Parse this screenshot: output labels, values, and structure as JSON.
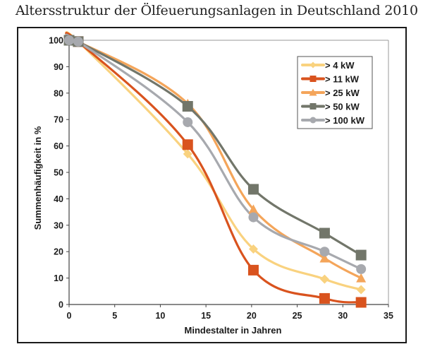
{
  "title": "Altersstruktur der Ölfeuerungsanlagen in Deutschland 2010",
  "chart_data": {
    "type": "line",
    "title": "Altersstruktur der Ölfeuerungsanlagen in Deutschland 2010",
    "xlabel": "Mindestalter in Jahren",
    "ylabel": "Summenhäufigkeit in %",
    "xlim": [
      0,
      35
    ],
    "ylim": [
      0,
      100
    ],
    "xticks": [
      0,
      5,
      10,
      15,
      20,
      25,
      30,
      35
    ],
    "yticks": [
      0,
      10,
      20,
      30,
      40,
      50,
      60,
      70,
      80,
      90,
      100
    ],
    "grid": false,
    "legend_position": "top-right",
    "x": [
      0,
      1,
      13,
      20.2,
      28,
      32
    ],
    "series": [
      {
        "name": "> 4 kW",
        "color": "#F9D27F",
        "marker": "diamond",
        "values": [
          100,
          99.5,
          57,
          21,
          9.6,
          5.6
        ]
      },
      {
        "name": "> 11 kW",
        "color": "#D9531E",
        "marker": "square",
        "values": [
          100,
          99.5,
          60.5,
          13,
          2.3,
          0.8
        ]
      },
      {
        "name": "> 25 kW",
        "color": "#F4A55A",
        "marker": "triangle",
        "values": [
          100,
          99.5,
          76,
          36,
          17.5,
          10
        ]
      },
      {
        "name": "> 50 kW",
        "color": "#72766A",
        "marker": "square",
        "values": [
          100,
          99.5,
          75,
          43.6,
          27,
          18.7
        ]
      },
      {
        "name": "> 100 kW",
        "color": "#A7A9AE",
        "marker": "circle",
        "values": [
          100,
          99.5,
          69,
          33,
          20,
          13.4
        ]
      }
    ]
  }
}
